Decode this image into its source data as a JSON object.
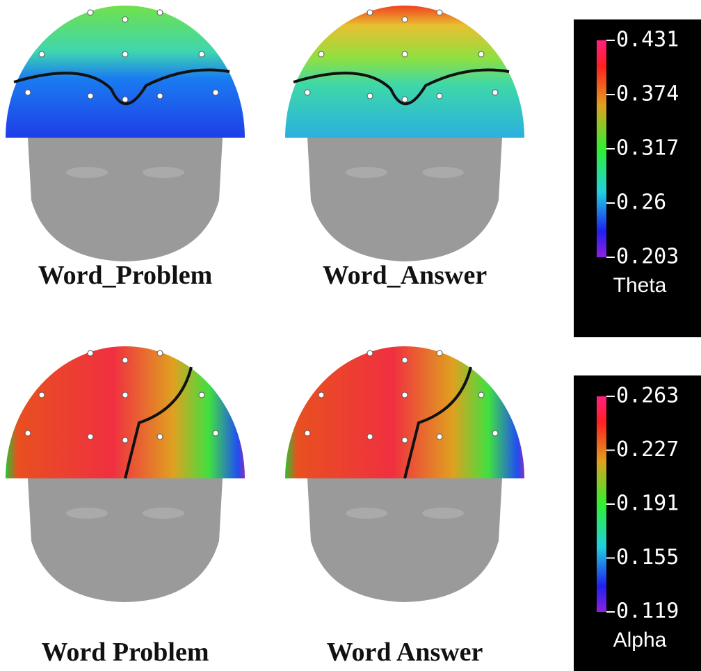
{
  "panels": [
    {
      "label": "Word_Problem"
    },
    {
      "label": "Word_Answer"
    },
    {
      "label": "Word Problem"
    },
    {
      "label": "Word Answer"
    }
  ],
  "colorbars": [
    {
      "label": "Theta",
      "ticks": [
        0.431,
        0.374,
        0.317,
        0.26,
        0.203
      ]
    },
    {
      "label": "Alpha",
      "ticks": [
        0.263,
        0.227,
        0.191,
        0.155,
        0.119
      ]
    }
  ]
}
